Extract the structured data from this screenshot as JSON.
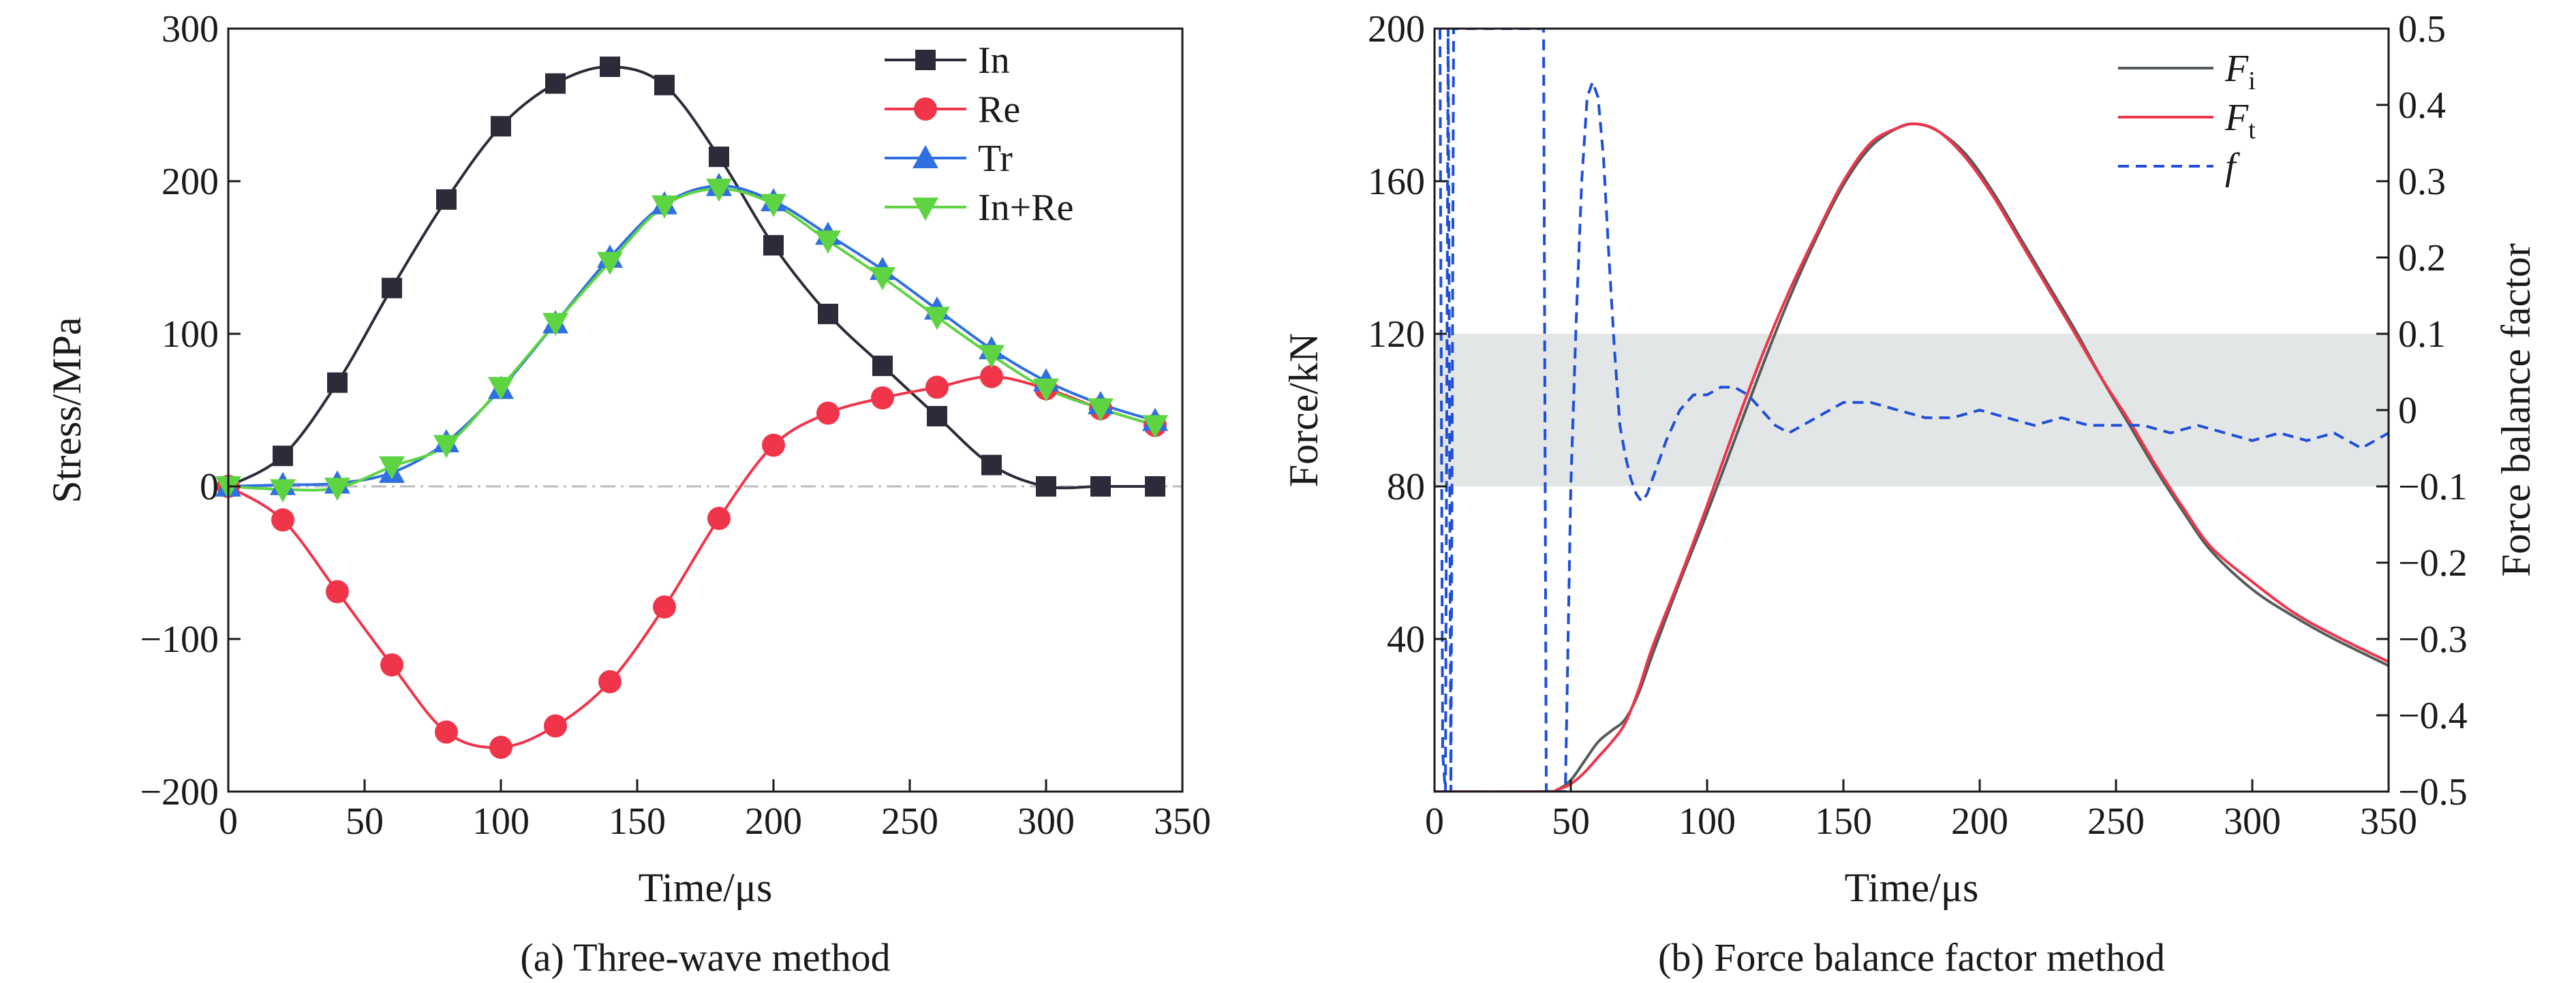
{
  "chart_data": [
    {
      "type": "line",
      "caption": "(a) Three-wave method",
      "xlabel": "Time/μs",
      "ylabel": "Stress/MPa",
      "xlim": [
        0,
        350
      ],
      "ylim": [
        -200,
        300
      ],
      "xticks": [
        0,
        50,
        100,
        150,
        200,
        250,
        300,
        350
      ],
      "yticks": [
        -200,
        -100,
        0,
        100,
        200,
        300
      ],
      "xtick_labels": [
        "0",
        "50",
        "100",
        "150",
        "200",
        "250",
        "300",
        "350"
      ],
      "ytick_labels": [
        "−200",
        "−100",
        "0",
        "100",
        "200",
        "300"
      ],
      "reference_line": {
        "y": 0,
        "style": "dash-dot",
        "color": "#bbbbbb"
      },
      "legend_position": "top-right",
      "x": [
        0,
        20,
        40,
        60,
        80,
        100,
        120,
        140,
        160,
        180,
        200,
        220,
        240,
        260,
        280,
        300,
        320,
        340
      ],
      "series": [
        {
          "name": "In",
          "color": "#2b2b3a",
          "marker": "square",
          "values": [
            0,
            20,
            68,
            130,
            188,
            236,
            264,
            275,
            263,
            216,
            158,
            113,
            79,
            46,
            14,
            0,
            0,
            0
          ]
        },
        {
          "name": "Re",
          "color": "#f0344a",
          "marker": "circle",
          "values": [
            0,
            -22,
            -69,
            -117,
            -161,
            -171,
            -157,
            -128,
            -79,
            -21,
            27,
            48,
            58,
            65,
            72,
            64,
            51,
            40
          ]
        },
        {
          "name": "Tr",
          "color": "#2f6fe0",
          "marker": "triangle-up",
          "values": [
            0,
            1,
            2,
            9,
            29,
            64,
            107,
            150,
            185,
            197,
            187,
            165,
            142,
            116,
            90,
            69,
            54,
            43
          ]
        },
        {
          "name": "In+Re",
          "color": "#5ed443",
          "marker": "triangle-down",
          "values": [
            0,
            -2,
            -1,
            13,
            27,
            65,
            107,
            147,
            184,
            195,
            185,
            161,
            137,
            111,
            86,
            64,
            51,
            40
          ]
        }
      ]
    },
    {
      "type": "line",
      "caption": "(b) Force balance factor method",
      "xlabel": "Time/μs",
      "ylabel": "Force/kN",
      "y2label": "Force balance factor",
      "xlim": [
        0,
        350
      ],
      "ylim": [
        0,
        200
      ],
      "y2lim": [
        -0.5,
        0.5
      ],
      "xticks": [
        0,
        50,
        100,
        150,
        200,
        250,
        300,
        350
      ],
      "yticks": [
        40,
        80,
        120,
        160,
        200
      ],
      "y2ticks": [
        -0.5,
        -0.4,
        -0.3,
        -0.2,
        -0.1,
        0,
        0.1,
        0.2,
        0.3,
        0.4,
        0.5
      ],
      "xtick_labels": [
        "0",
        "50",
        "100",
        "150",
        "200",
        "250",
        "300",
        "350"
      ],
      "ytick_labels": [
        "40",
        "80",
        "120",
        "160",
        "200"
      ],
      "y2tick_labels": [
        "−0.5",
        "−0.4",
        "−0.3",
        "−0.2",
        "−0.1",
        "0",
        "0.1",
        "0.2",
        "0.3",
        "0.4",
        "0.5"
      ],
      "shaded_band": {
        "axis": "y2",
        "range": [
          -0.1,
          0.1
        ],
        "color": "#e3e6e6"
      },
      "legend_position": "top-right",
      "series": [
        {
          "name": "F",
          "subscript": "i",
          "axis": "y",
          "color": "#555b5b",
          "style": "solid",
          "x": [
            0,
            40,
            45,
            50,
            55,
            60,
            65,
            70,
            75,
            80,
            90,
            100,
            110,
            120,
            130,
            140,
            150,
            160,
            170,
            177,
            185,
            195,
            205,
            215,
            225,
            235,
            245,
            255,
            265,
            275,
            285,
            300,
            315,
            330,
            350
          ],
          "values": [
            0,
            0,
            0.5,
            3,
            8,
            13,
            16,
            19,
            26,
            36,
            55,
            73,
            92,
            111,
            129,
            145,
            159,
            169,
            174,
            175,
            173,
            167,
            157,
            145,
            133,
            121,
            108,
            96,
            84,
            73,
            63,
            53,
            46,
            40,
            33
          ]
        },
        {
          "name": "F",
          "subscript": "t",
          "axis": "y",
          "color": "#f0344a",
          "style": "solid",
          "x": [
            0,
            40,
            45,
            50,
            55,
            60,
            65,
            70,
            75,
            80,
            90,
            100,
            110,
            120,
            130,
            140,
            150,
            160,
            170,
            177,
            185,
            195,
            205,
            215,
            225,
            235,
            245,
            255,
            265,
            275,
            285,
            300,
            315,
            330,
            350
          ],
          "values": [
            0,
            0,
            0.5,
            2,
            5,
            9,
            13,
            18,
            27,
            38,
            56,
            75,
            95,
            114,
            131,
            146,
            160,
            170,
            174,
            175,
            173,
            166,
            156,
            144,
            132,
            120,
            108,
            97,
            85,
            74,
            64,
            55,
            47,
            41,
            34
          ]
        },
        {
          "name": "f",
          "axis": "y2",
          "color": "#1f4fd8",
          "style": "dashed",
          "x": [
            2,
            3,
            4,
            5,
            6,
            7,
            40,
            41,
            42,
            43,
            44,
            45,
            46,
            47,
            48,
            49,
            50,
            52,
            54,
            56,
            58,
            60,
            62,
            64,
            66,
            68,
            70,
            72,
            74,
            76,
            78,
            80,
            85,
            90,
            95,
            100,
            105,
            110,
            115,
            120,
            125,
            130,
            135,
            140,
            150,
            160,
            170,
            180,
            190,
            200,
            210,
            220,
            230,
            240,
            250,
            260,
            270,
            280,
            290,
            300,
            310,
            320,
            330,
            340,
            350
          ],
          "values": [
            0.5,
            -0.45,
            -0.5,
            0.5,
            -0.5,
            0.5,
            0.5,
            -0.5,
            -0.5,
            -0.5,
            -0.5,
            -0.5,
            -0.5,
            -0.5,
            -0.5,
            -0.3,
            -0.1,
            0.12,
            0.3,
            0.41,
            0.43,
            0.41,
            0.33,
            0.2,
            0.08,
            -0.02,
            -0.06,
            -0.09,
            -0.11,
            -0.12,
            -0.11,
            -0.09,
            -0.04,
            0.0,
            0.02,
            0.02,
            0.03,
            0.03,
            0.02,
            0.0,
            -0.02,
            -0.03,
            -0.02,
            -0.01,
            0.01,
            0.01,
            0.0,
            -0.01,
            -0.01,
            0.0,
            -0.01,
            -0.02,
            -0.01,
            -0.02,
            -0.02,
            -0.02,
            -0.03,
            -0.02,
            -0.03,
            -0.04,
            -0.03,
            -0.04,
            -0.03,
            -0.05,
            -0.03
          ]
        }
      ]
    }
  ]
}
